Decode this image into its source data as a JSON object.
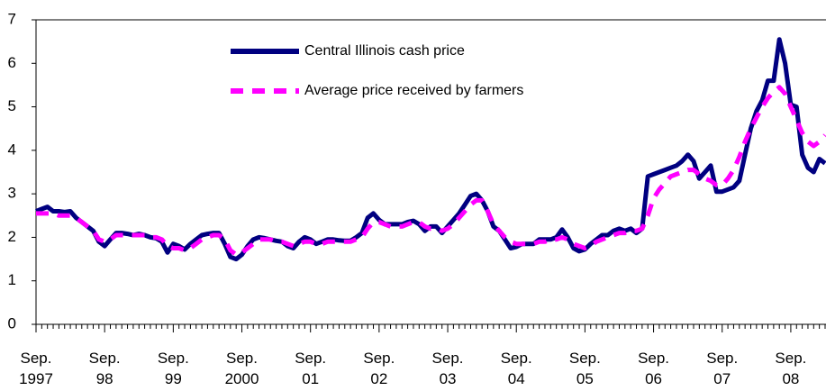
{
  "chart_data": {
    "type": "line",
    "categories": [
      "Sep.\n1997",
      null,
      null,
      null,
      null,
      null,
      null,
      null,
      null,
      null,
      null,
      null,
      "Sep.\n98",
      null,
      null,
      null,
      null,
      null,
      null,
      null,
      null,
      null,
      null,
      null,
      "Sep.\n99",
      null,
      null,
      null,
      null,
      null,
      null,
      null,
      null,
      null,
      null,
      null,
      "Sep.\n2000",
      null,
      null,
      null,
      null,
      null,
      null,
      null,
      null,
      null,
      null,
      null,
      "Sep.\n01",
      null,
      null,
      null,
      null,
      null,
      null,
      null,
      null,
      null,
      null,
      null,
      "Sep.\n02",
      null,
      null,
      null,
      null,
      null,
      null,
      null,
      null,
      null,
      null,
      null,
      "Sep.\n03",
      null,
      null,
      null,
      null,
      null,
      null,
      null,
      null,
      null,
      null,
      null,
      "Sep.\n04",
      null,
      null,
      null,
      null,
      null,
      null,
      null,
      null,
      null,
      null,
      null,
      "Sep.\n05",
      null,
      null,
      null,
      null,
      null,
      null,
      null,
      null,
      null,
      null,
      null,
      "Sep.\n06",
      null,
      null,
      null,
      null,
      null,
      null,
      null,
      null,
      null,
      null,
      null,
      "Sep.\n07",
      null,
      null,
      null,
      null,
      null,
      null,
      null,
      null,
      null,
      null,
      null,
      "Sep.\n08",
      null,
      null,
      null,
      null,
      null,
      null
    ],
    "series": [
      {
        "name": "Central Illinois cash price",
        "color": "#000080",
        "dashed": false,
        "values": [
          2.6,
          2.65,
          2.7,
          2.6,
          2.6,
          2.58,
          2.6,
          2.45,
          2.35,
          2.25,
          2.15,
          1.9,
          1.8,
          1.95,
          2.1,
          2.1,
          2.08,
          2.05,
          2.08,
          2.05,
          2.0,
          1.98,
          1.9,
          1.65,
          1.85,
          1.8,
          1.72,
          1.85,
          1.95,
          2.05,
          2.08,
          2.1,
          2.1,
          1.85,
          1.55,
          1.5,
          1.6,
          1.8,
          1.95,
          2.0,
          1.98,
          1.95,
          1.92,
          1.9,
          1.8,
          1.75,
          1.9,
          2.0,
          1.95,
          1.85,
          1.9,
          1.95,
          1.95,
          1.93,
          1.92,
          1.92,
          2.0,
          2.1,
          2.45,
          2.55,
          2.4,
          2.3,
          2.3,
          2.3,
          2.3,
          2.35,
          2.38,
          2.3,
          2.15,
          2.25,
          2.25,
          2.1,
          2.25,
          2.4,
          2.55,
          2.75,
          2.95,
          3.0,
          2.85,
          2.6,
          2.25,
          2.15,
          1.95,
          1.75,
          1.78,
          1.85,
          1.85,
          1.85,
          1.95,
          1.95,
          1.95,
          2.0,
          2.18,
          2.0,
          1.75,
          1.68,
          1.72,
          1.85,
          1.95,
          2.05,
          2.05,
          2.15,
          2.2,
          2.15,
          2.2,
          2.1,
          2.2,
          3.4,
          3.45,
          3.5,
          3.55,
          3.6,
          3.65,
          3.75,
          3.9,
          3.75,
          3.35,
          3.5,
          3.65,
          3.05,
          3.05,
          3.1,
          3.15,
          3.3,
          3.9,
          4.5,
          4.9,
          5.15,
          5.6,
          5.6,
          6.55,
          6.0,
          5.05,
          5.0,
          3.9,
          3.6,
          3.5,
          3.8,
          3.7
        ]
      },
      {
        "name": "Average price received by farmers",
        "color": "#ff00ff",
        "dashed": true,
        "values": [
          2.55,
          2.55,
          2.55,
          2.55,
          2.5,
          2.5,
          2.5,
          2.45,
          2.35,
          2.25,
          2.15,
          1.95,
          1.9,
          1.95,
          2.05,
          2.05,
          2.05,
          2.05,
          2.05,
          2.05,
          2.0,
          2.0,
          1.95,
          1.8,
          1.75,
          1.75,
          1.7,
          1.75,
          1.85,
          1.95,
          2.0,
          2.05,
          2.05,
          1.95,
          1.7,
          1.6,
          1.65,
          1.75,
          1.85,
          1.95,
          1.95,
          1.95,
          1.9,
          1.9,
          1.85,
          1.8,
          1.85,
          1.9,
          1.9,
          1.85,
          1.85,
          1.9,
          1.9,
          1.9,
          1.9,
          1.9,
          1.95,
          2.0,
          2.2,
          2.35,
          2.35,
          2.3,
          2.25,
          2.25,
          2.25,
          2.3,
          2.35,
          2.35,
          2.25,
          2.2,
          2.2,
          2.15,
          2.2,
          2.3,
          2.45,
          2.6,
          2.75,
          2.85,
          2.85,
          2.6,
          2.3,
          2.15,
          2.0,
          1.9,
          1.85,
          1.85,
          1.85,
          1.85,
          1.9,
          1.9,
          1.95,
          1.95,
          2.0,
          1.95,
          1.85,
          1.8,
          1.75,
          1.8,
          1.9,
          1.95,
          2.0,
          2.05,
          2.1,
          2.1,
          2.15,
          2.15,
          2.2,
          2.5,
          2.9,
          3.1,
          3.25,
          3.4,
          3.45,
          3.5,
          3.55,
          3.55,
          3.45,
          3.35,
          3.3,
          3.2,
          3.2,
          3.35,
          3.55,
          3.85,
          4.2,
          4.5,
          4.75,
          5.0,
          5.2,
          5.35,
          5.45,
          5.3,
          5.0,
          4.7,
          4.4,
          4.2,
          4.1,
          4.2,
          4.35
        ]
      }
    ],
    "ylim": [
      0,
      7
    ],
    "yticks": [
      0,
      1,
      2,
      3,
      4,
      5,
      6,
      7
    ]
  }
}
